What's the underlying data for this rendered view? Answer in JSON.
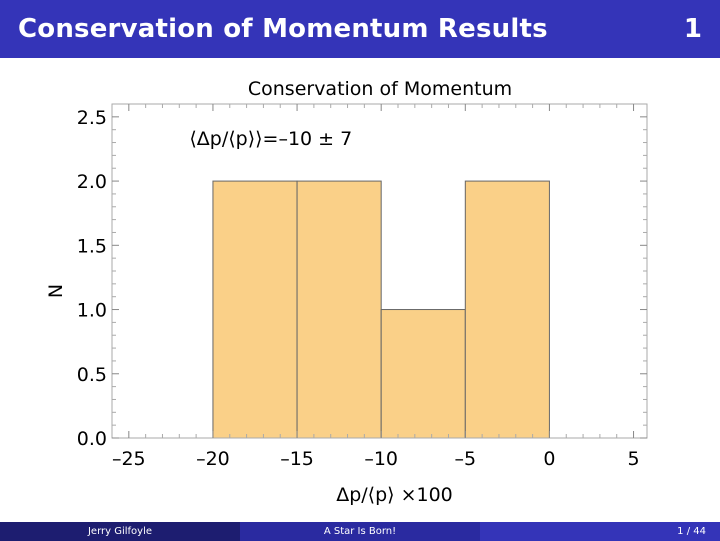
{
  "header": {
    "title": "Conservation of Momentum Results",
    "slide_number": "1"
  },
  "chart_data": {
    "type": "bar",
    "title": "Conservation of Momentum",
    "xlabel": "Δp/⟨p⟩ ×100",
    "ylabel": "N",
    "annotation": "⟨Δp/⟨p⟩⟩=–10 ± 7",
    "bins": [
      {
        "from": -20,
        "to": -15,
        "count": 2
      },
      {
        "from": -15,
        "to": -10,
        "count": 2
      },
      {
        "from": -10,
        "to": -5,
        "count": 1
      },
      {
        "from": -5,
        "to": 0,
        "count": 2
      }
    ],
    "xlim": [
      -26,
      5.8
    ],
    "ylim": [
      0,
      2.6
    ],
    "x_ticks": [
      "–25",
      "–20",
      "–15",
      "–10",
      "–5",
      "0",
      "5"
    ],
    "x_tick_values": [
      -25,
      -20,
      -15,
      -10,
      -5,
      0,
      5
    ],
    "y_ticks": [
      "0.0",
      "0.5",
      "1.0",
      "1.5",
      "2.0",
      "2.5"
    ],
    "y_tick_values": [
      0,
      0.5,
      1.0,
      1.5,
      2.0,
      2.5
    ],
    "bar_color": "#fad088",
    "bar_edge_color": "#666666"
  },
  "footer": {
    "author": "Jerry Gilfoyle",
    "talk": "A Star Is Born!",
    "page": "1 / 44"
  }
}
